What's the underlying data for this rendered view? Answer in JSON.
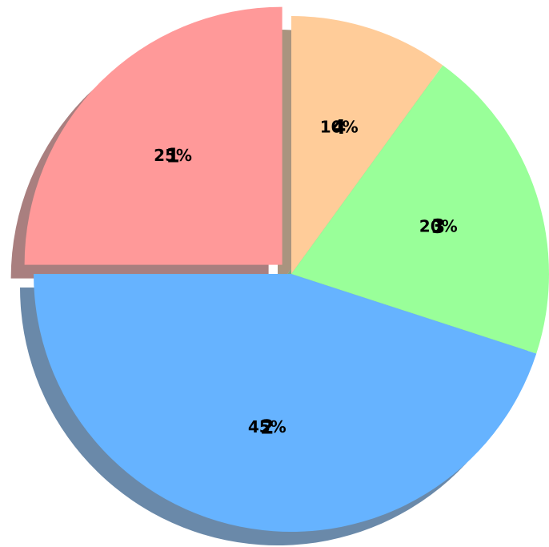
{
  "chart_data": {
    "type": "pie",
    "labels": [
      "1",
      "2",
      "3",
      "4"
    ],
    "values": [
      25,
      45,
      20,
      10
    ],
    "percent_labels": [
      "25%",
      "45%",
      "20%",
      "10%"
    ],
    "colors": [
      "#ff9999",
      "#66b3ff",
      "#99ff99",
      "#ffcc99"
    ],
    "explode": [
      0.05,
      0,
      0,
      0
    ],
    "shadow": true,
    "start_angle_deg": 90,
    "direction": "counterclockwise",
    "title": "",
    "legend": "none"
  }
}
